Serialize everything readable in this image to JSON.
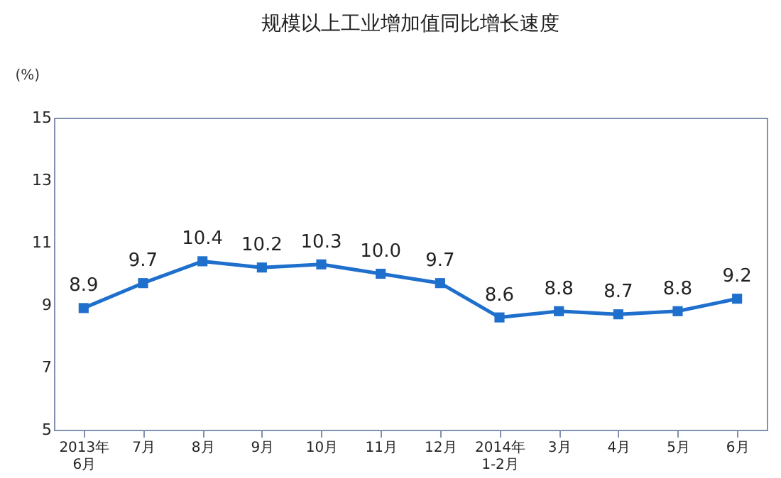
{
  "chart_data": {
    "type": "line",
    "title": "规模以上工业增加值同比增长速度",
    "ylabel": "(%)",
    "categories": [
      "2013年\n6月",
      "7月",
      "8月",
      "9月",
      "10月",
      "11月",
      "12月",
      "2014年\n1-2月",
      "3月",
      "4月",
      "5月",
      "6月"
    ],
    "series": [
      {
        "color": "#1f6fcc",
        "values": [
          8.9,
          9.7,
          10.4,
          10.2,
          10.3,
          10.0,
          9.7,
          8.6,
          8.8,
          8.7,
          8.8,
          9.2
        ],
        "value_labels": [
          "8.9",
          "9.7",
          "10.4",
          "10.2",
          "10.3",
          "10.0",
          "9.7",
          "8.6",
          "8.8",
          "8.7",
          "8.8",
          "9.2"
        ]
      }
    ],
    "ylim": [
      5,
      15
    ],
    "yticks": [
      5,
      7,
      9,
      11,
      13,
      15
    ],
    "grid": false,
    "legend": false,
    "marker": "square",
    "line_style": "solid"
  }
}
